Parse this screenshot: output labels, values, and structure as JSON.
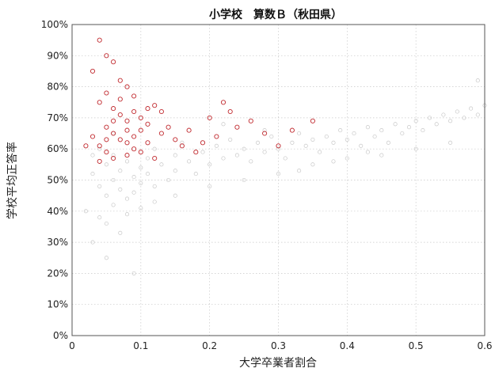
{
  "chart_data": {
    "type": "scatter",
    "title": "小学校　算数Ｂ（秋田県）",
    "xlabel": "大学卒業者割合",
    "ylabel": "学校平均正答率",
    "xlim": [
      0,
      0.6
    ],
    "ylim": [
      0,
      1.0
    ],
    "x_ticks": [
      0,
      0.1,
      0.2,
      0.3,
      0.4,
      0.5,
      0.6
    ],
    "x_tick_labels": [
      "0",
      "0.1",
      "0.2",
      "0.3",
      "0.4",
      "0.5",
      "0.6"
    ],
    "y_ticks": [
      0,
      0.1,
      0.2,
      0.3,
      0.4,
      0.5,
      0.6,
      0.7,
      0.8,
      0.9,
      1.0
    ],
    "y_tick_labels": [
      "0%",
      "10%",
      "20%",
      "30%",
      "40%",
      "50%",
      "60%",
      "70%",
      "80%",
      "90%",
      "100%"
    ],
    "grid": true,
    "colors": {
      "background_points": "#c8c8c8",
      "highlight_points": "#c0282d"
    },
    "series": [
      {
        "role": "background",
        "points": [
          [
            0.03,
            0.52
          ],
          [
            0.04,
            0.48
          ],
          [
            0.05,
            0.55
          ],
          [
            0.05,
            0.45
          ],
          [
            0.06,
            0.5
          ],
          [
            0.06,
            0.58
          ],
          [
            0.07,
            0.47
          ],
          [
            0.07,
            0.53
          ],
          [
            0.08,
            0.44
          ],
          [
            0.08,
            0.56
          ],
          [
            0.09,
            0.51
          ],
          [
            0.09,
            0.46
          ],
          [
            0.1,
            0.54
          ],
          [
            0.1,
            0.49
          ],
          [
            0.11,
            0.57
          ],
          [
            0.11,
            0.52
          ],
          [
            0.12,
            0.48
          ],
          [
            0.12,
            0.6
          ],
          [
            0.13,
            0.55
          ],
          [
            0.14,
            0.5
          ],
          [
            0.15,
            0.58
          ],
          [
            0.15,
            0.53
          ],
          [
            0.16,
            0.62
          ],
          [
            0.17,
            0.56
          ],
          [
            0.18,
            0.52
          ],
          [
            0.19,
            0.59
          ],
          [
            0.2,
            0.55
          ],
          [
            0.21,
            0.61
          ],
          [
            0.22,
            0.57
          ],
          [
            0.23,
            0.63
          ],
          [
            0.24,
            0.58
          ],
          [
            0.25,
            0.6
          ],
          [
            0.26,
            0.56
          ],
          [
            0.27,
            0.62
          ],
          [
            0.28,
            0.59
          ],
          [
            0.29,
            0.64
          ],
          [
            0.3,
            0.6
          ],
          [
            0.31,
            0.57
          ],
          [
            0.32,
            0.62
          ],
          [
            0.33,
            0.65
          ],
          [
            0.34,
            0.61
          ],
          [
            0.35,
            0.63
          ],
          [
            0.36,
            0.59
          ],
          [
            0.37,
            0.64
          ],
          [
            0.38,
            0.62
          ],
          [
            0.39,
            0.66
          ],
          [
            0.4,
            0.63
          ],
          [
            0.41,
            0.65
          ],
          [
            0.42,
            0.61
          ],
          [
            0.43,
            0.67
          ],
          [
            0.44,
            0.64
          ],
          [
            0.45,
            0.66
          ],
          [
            0.46,
            0.62
          ],
          [
            0.47,
            0.68
          ],
          [
            0.48,
            0.65
          ],
          [
            0.49,
            0.67
          ],
          [
            0.5,
            0.69
          ],
          [
            0.51,
            0.66
          ],
          [
            0.52,
            0.7
          ],
          [
            0.53,
            0.68
          ],
          [
            0.54,
            0.71
          ],
          [
            0.55,
            0.69
          ],
          [
            0.56,
            0.72
          ],
          [
            0.57,
            0.7
          ],
          [
            0.58,
            0.73
          ],
          [
            0.59,
            0.71
          ],
          [
            0.6,
            0.74
          ],
          [
            0.02,
            0.4
          ],
          [
            0.04,
            0.38
          ],
          [
            0.05,
            0.36
          ],
          [
            0.06,
            0.42
          ],
          [
            0.08,
            0.39
          ],
          [
            0.1,
            0.41
          ],
          [
            0.12,
            0.43
          ],
          [
            0.03,
            0.3
          ],
          [
            0.05,
            0.25
          ],
          [
            0.07,
            0.33
          ],
          [
            0.09,
            0.2
          ],
          [
            0.04,
            0.6
          ],
          [
            0.06,
            0.65
          ],
          [
            0.03,
            0.58
          ],
          [
            0.15,
            0.45
          ],
          [
            0.2,
            0.48
          ],
          [
            0.25,
            0.5
          ],
          [
            0.3,
            0.52
          ],
          [
            0.35,
            0.55
          ],
          [
            0.4,
            0.57
          ],
          [
            0.45,
            0.58
          ],
          [
            0.5,
            0.6
          ],
          [
            0.55,
            0.62
          ],
          [
            0.59,
            0.82
          ],
          [
            0.22,
            0.68
          ],
          [
            0.28,
            0.66
          ],
          [
            0.33,
            0.53
          ],
          [
            0.38,
            0.56
          ],
          [
            0.43,
            0.59
          ]
        ]
      },
      {
        "role": "highlight",
        "points": [
          [
            0.04,
            0.95
          ],
          [
            0.05,
            0.9
          ],
          [
            0.03,
            0.85
          ],
          [
            0.06,
            0.88
          ],
          [
            0.07,
            0.82
          ],
          [
            0.08,
            0.8
          ],
          [
            0.05,
            0.78
          ],
          [
            0.04,
            0.75
          ],
          [
            0.06,
            0.73
          ],
          [
            0.07,
            0.71
          ],
          [
            0.08,
            0.69
          ],
          [
            0.09,
            0.72
          ],
          [
            0.1,
            0.7
          ],
          [
            0.11,
            0.68
          ],
          [
            0.12,
            0.74
          ],
          [
            0.05,
            0.67
          ],
          [
            0.06,
            0.65
          ],
          [
            0.07,
            0.63
          ],
          [
            0.08,
            0.62
          ],
          [
            0.09,
            0.64
          ],
          [
            0.1,
            0.66
          ],
          [
            0.04,
            0.61
          ],
          [
            0.03,
            0.64
          ],
          [
            0.05,
            0.59
          ],
          [
            0.06,
            0.57
          ],
          [
            0.08,
            0.58
          ],
          [
            0.09,
            0.6
          ],
          [
            0.11,
            0.62
          ],
          [
            0.13,
            0.65
          ],
          [
            0.14,
            0.67
          ],
          [
            0.15,
            0.63
          ],
          [
            0.16,
            0.61
          ],
          [
            0.17,
            0.66
          ],
          [
            0.18,
            0.59
          ],
          [
            0.19,
            0.62
          ],
          [
            0.2,
            0.7
          ],
          [
            0.21,
            0.64
          ],
          [
            0.22,
            0.75
          ],
          [
            0.23,
            0.72
          ],
          [
            0.24,
            0.67
          ],
          [
            0.26,
            0.69
          ],
          [
            0.28,
            0.65
          ],
          [
            0.3,
            0.61
          ],
          [
            0.32,
            0.66
          ],
          [
            0.35,
            0.69
          ],
          [
            0.02,
            0.61
          ],
          [
            0.12,
            0.57
          ],
          [
            0.07,
            0.76
          ],
          [
            0.09,
            0.77
          ],
          [
            0.13,
            0.72
          ],
          [
            0.1,
            0.59
          ],
          [
            0.11,
            0.73
          ],
          [
            0.06,
            0.69
          ],
          [
            0.04,
            0.56
          ],
          [
            0.05,
            0.63
          ],
          [
            0.08,
            0.66
          ]
        ]
      }
    ]
  }
}
